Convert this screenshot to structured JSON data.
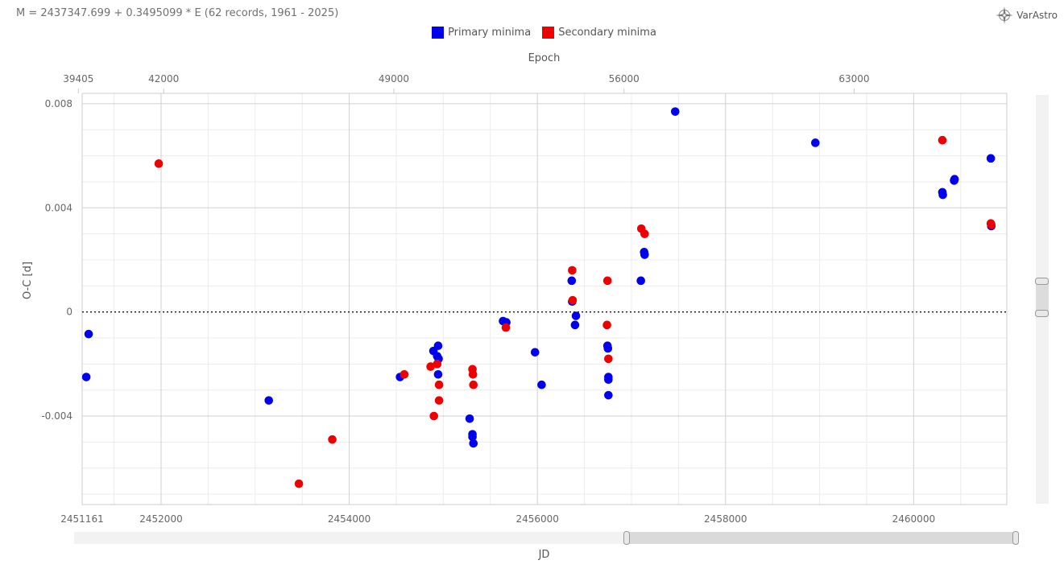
{
  "header": {
    "equation": "M = 2437347.699 + 0.3495099 * E (62 records, 1961 - 2025)",
    "brand": "VarAstro",
    "brand_icon": "compass-star-icon"
  },
  "colors": {
    "primary": "#0000ee",
    "secondary": "#ee0000",
    "grid_major": "#d0d0d0",
    "grid_minor": "#ececec",
    "axis_text": "#666666",
    "slider": "#e0e0e0"
  },
  "chart_data": {
    "type": "scatter",
    "title": "",
    "xlabel": "JD",
    "ylabel": "O-C [d]",
    "x2label": "Epoch",
    "xlim": [
      2451161,
      2460990
    ],
    "ylim": [
      -0.0074,
      0.0084
    ],
    "x_ticks": [
      2451161,
      2452000,
      2454000,
      2456000,
      2458000,
      2460000
    ],
    "y_ticks": [
      0.008,
      0.004,
      0,
      -0.004
    ],
    "y_tick_labels": [
      "0.008",
      "0.004",
      "0",
      "-0.004"
    ],
    "epoch_ticks": [
      39405,
      42000,
      49000,
      56000,
      63000
    ],
    "epoch_ticks_jd": [
      2451120.7,
      2452027.7,
      2454474.3,
      2456920.8,
      2459367.4
    ],
    "zero_line": true,
    "grid": true,
    "legend_position": "top-center",
    "series": [
      {
        "name": "Primary minima",
        "color": "#0000ee",
        "points": [
          [
            2451205,
            -0.0025
          ],
          [
            2451230,
            -0.00085
          ],
          [
            2453145,
            -0.0034
          ],
          [
            2454540,
            -0.0025
          ],
          [
            2454895,
            -0.0015
          ],
          [
            2454935,
            -0.0017
          ],
          [
            2454945,
            -0.0013
          ],
          [
            2454950,
            -0.0018
          ],
          [
            2454945,
            -0.0024
          ],
          [
            2455280,
            -0.0041
          ],
          [
            2455310,
            -0.0047
          ],
          [
            2455310,
            -0.0048
          ],
          [
            2455320,
            -0.00505
          ],
          [
            2455635,
            -0.00035
          ],
          [
            2455670,
            -0.0004
          ],
          [
            2455975,
            -0.00155
          ],
          [
            2456045,
            -0.0028
          ],
          [
            2456365,
            0.0012
          ],
          [
            2456370,
            0.0004
          ],
          [
            2456410,
            -0.00015
          ],
          [
            2456400,
            -0.0005
          ],
          [
            2456745,
            -0.0013
          ],
          [
            2456750,
            -0.0014
          ],
          [
            2456755,
            -0.0025
          ],
          [
            2456755,
            -0.0026
          ],
          [
            2456755,
            -0.0032
          ],
          [
            2457100,
            0.0012
          ],
          [
            2457135,
            0.0023
          ],
          [
            2457140,
            0.0022
          ],
          [
            2457465,
            0.0077
          ],
          [
            2458955,
            0.0065
          ],
          [
            2460305,
            0.0046
          ],
          [
            2460310,
            0.0045
          ],
          [
            2460430,
            0.00505
          ],
          [
            2460435,
            0.0051
          ],
          [
            2460820,
            0.0059
          ],
          [
            2460825,
            0.0033
          ]
        ]
      },
      {
        "name": "Secondary minima",
        "color": "#ee0000",
        "points": [
          [
            2451975,
            0.0057
          ],
          [
            2453465,
            -0.0066
          ],
          [
            2453820,
            -0.0049
          ],
          [
            2454585,
            -0.0024
          ],
          [
            2454865,
            -0.0021
          ],
          [
            2454900,
            -0.004
          ],
          [
            2454935,
            -0.002
          ],
          [
            2454955,
            -0.0028
          ],
          [
            2454955,
            -0.0034
          ],
          [
            2455310,
            -0.0022
          ],
          [
            2455315,
            -0.0024
          ],
          [
            2455320,
            -0.0028
          ],
          [
            2455665,
            -0.0006
          ],
          [
            2456370,
            0.0016
          ],
          [
            2456375,
            0.00045
          ],
          [
            2456740,
            -0.0005
          ],
          [
            2456745,
            0.0012
          ],
          [
            2456755,
            -0.0018
          ],
          [
            2457105,
            0.0032
          ],
          [
            2457140,
            0.003
          ],
          [
            2460305,
            0.0066
          ],
          [
            2460820,
            0.0034
          ],
          [
            2460825,
            0.00335
          ]
        ]
      }
    ]
  }
}
